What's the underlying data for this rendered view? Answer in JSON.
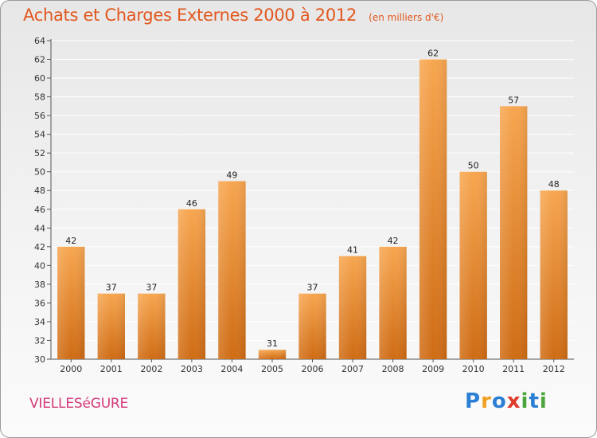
{
  "title": {
    "main": "Achats et Charges Externes 2000 à 2012",
    "unit": "(en milliers d'€)"
  },
  "commune": "VIELLESéGURE",
  "logo": {
    "text": "Proxiti",
    "letters": [
      {
        "char": "P",
        "color": "#2a7fd4"
      },
      {
        "char": "r",
        "color": "#f0a020"
      },
      {
        "char": "o",
        "color": "#2a7fd4"
      },
      {
        "char": "x",
        "color": "#e03a2a"
      },
      {
        "char": "i",
        "color": "#4aa63a"
      },
      {
        "char": "t",
        "color": "#2a7fd4"
      },
      {
        "char": "i",
        "color": "#4aa63a"
      }
    ]
  },
  "colors": {
    "bar_top": "#f7a650",
    "bar_bottom": "#cf6c15",
    "title": "#e2571e",
    "commune": "#d43a7a",
    "grid": "#ffffff"
  },
  "chart_data": {
    "type": "bar",
    "title": "Achats et Charges Externes 2000 à 2012",
    "subtitle": "(en milliers d'€)",
    "categories": [
      "2000",
      "2001",
      "2002",
      "2003",
      "2004",
      "2005",
      "2006",
      "2007",
      "2008",
      "2009",
      "2010",
      "2011",
      "2012"
    ],
    "values": [
      42,
      37,
      37,
      46,
      49,
      31,
      37,
      41,
      42,
      62,
      50,
      57,
      48
    ],
    "ylim": [
      30,
      64
    ],
    "yticks": [
      "30",
      "32",
      "34",
      "36",
      "38",
      "40",
      "42",
      "44",
      "46",
      "48",
      "50",
      "52",
      "54",
      "56",
      "58",
      "60",
      "62",
      "64"
    ],
    "grid": true,
    "xlabel": "",
    "ylabel": ""
  }
}
